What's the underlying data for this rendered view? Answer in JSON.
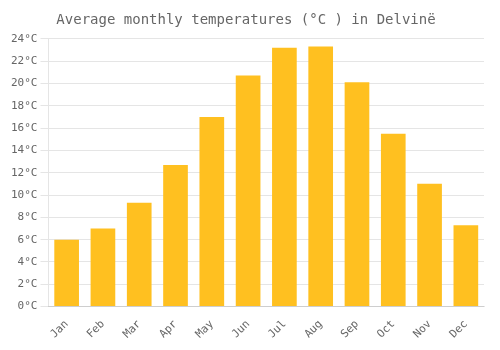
{
  "chart_data": {
    "type": "bar",
    "title": "Average monthly temperatures (°C ) in Delvinë",
    "categories": [
      "Jan",
      "Feb",
      "Mar",
      "Apr",
      "May",
      "Jun",
      "Jul",
      "Aug",
      "Sep",
      "Oct",
      "Nov",
      "Dec"
    ],
    "values": [
      6.0,
      7.0,
      9.3,
      12.7,
      17.0,
      20.7,
      23.2,
      23.3,
      20.1,
      15.5,
      11.0,
      7.3
    ],
    "color": "#FFC020",
    "ylim": [
      0,
      24
    ],
    "yticks": [
      {
        "value": 0,
        "label": "0°C"
      },
      {
        "value": 2,
        "label": "2°C"
      },
      {
        "value": 4,
        "label": "4°C"
      },
      {
        "value": 6,
        "label": "6°C"
      },
      {
        "value": 8,
        "label": "8°C"
      },
      {
        "value": 10,
        "label": "10°C"
      },
      {
        "value": 12,
        "label": "12°C"
      },
      {
        "value": 14,
        "label": "14°C"
      },
      {
        "value": 16,
        "label": "16°C"
      },
      {
        "value": 18,
        "label": "18°C"
      },
      {
        "value": 20,
        "label": "20°C"
      },
      {
        "value": 22,
        "label": "22°C"
      },
      {
        "value": 24,
        "label": "24°C"
      }
    ],
    "grid": true
  }
}
